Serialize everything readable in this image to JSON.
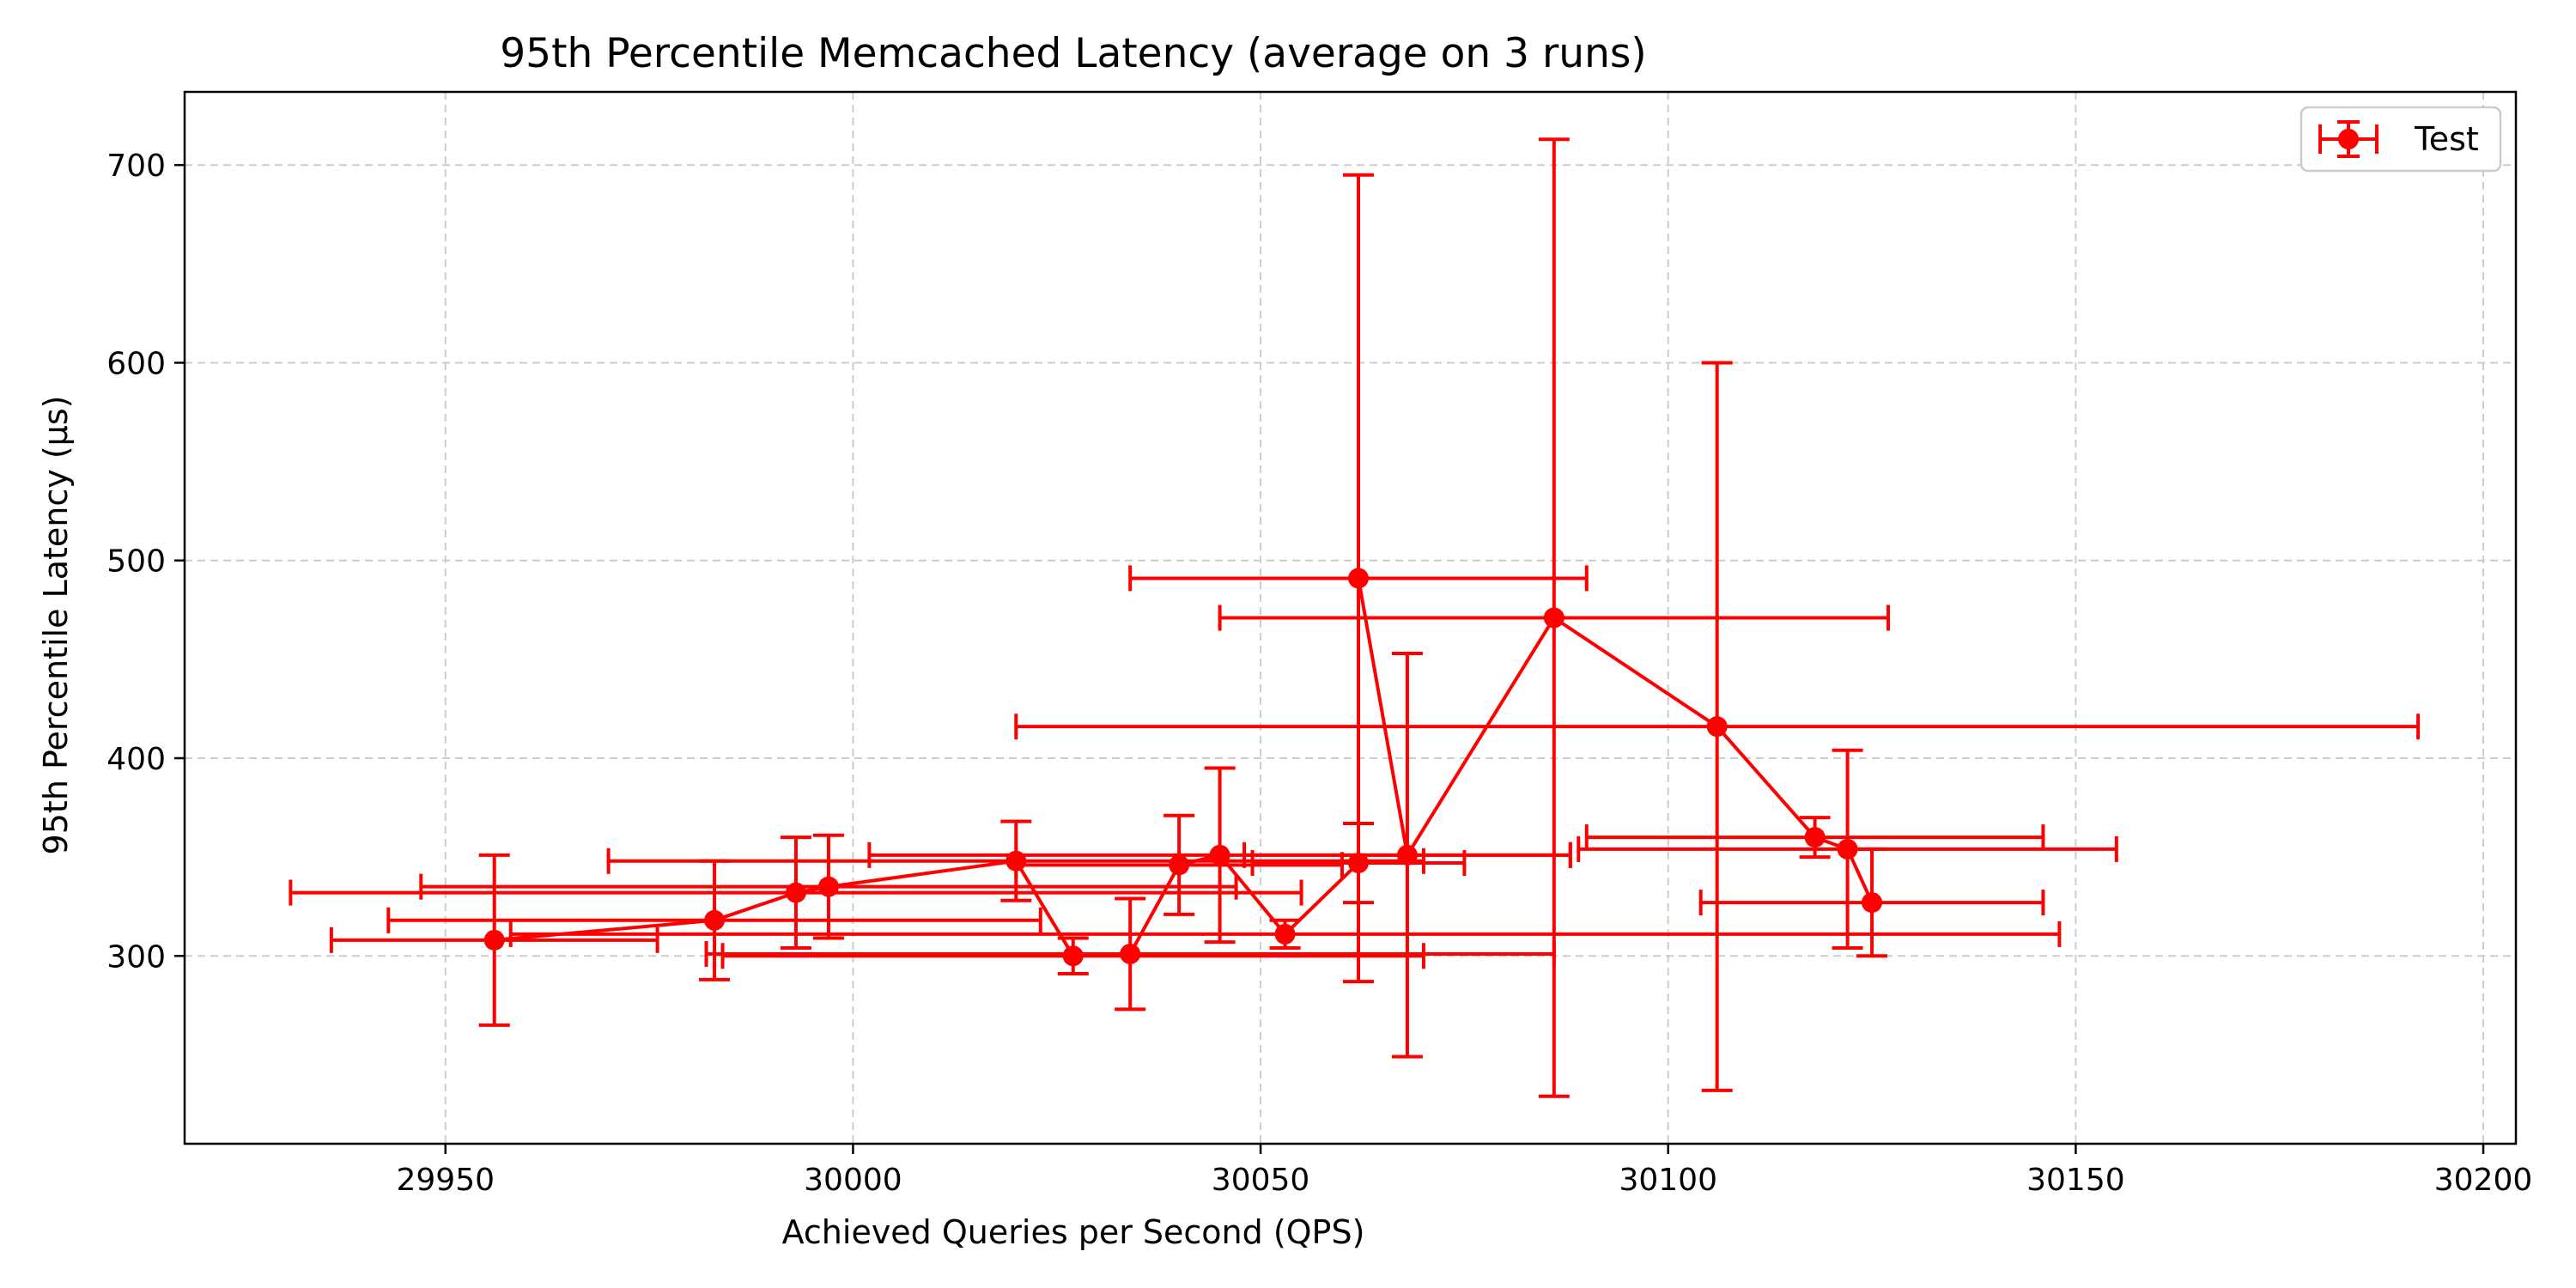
{
  "chart_data": {
    "type": "scatter",
    "title": "95th Percentile Memcached Latency (average on 3 runs)",
    "xlabel": "Achieved Queries per Second (QPS)",
    "ylabel": "95th Percentile Latency (µs)",
    "xlim": [
      29918,
      30204
    ],
    "ylim": [
      205,
      737
    ],
    "xticks": [
      29950,
      30000,
      30050,
      30100,
      30150,
      30200
    ],
    "yticks": [
      300,
      400,
      500,
      600,
      700
    ],
    "grid": true,
    "legend_position": "top-right",
    "colors": {
      "series": "#ff0000",
      "grid": "#cccccc",
      "axis": "#000000"
    },
    "series": [
      {
        "name": "Test",
        "marker": "circle",
        "connected": true,
        "points": [
          {
            "x": 29956,
            "y": 308,
            "xerr": 20,
            "yerr": 43
          },
          {
            "x": 29983,
            "y": 318,
            "xerr": 40,
            "yerr": 30
          },
          {
            "x": 29993,
            "y": 332,
            "xerr": 62,
            "yerr": 28
          },
          {
            "x": 29997,
            "y": 335,
            "xerr": 50,
            "yerr": 26
          },
          {
            "x": 30020,
            "y": 348,
            "xerr": 50,
            "yerr": 20
          },
          {
            "x": 30027,
            "y": 300,
            "xerr": 43,
            "yerr": 9
          },
          {
            "x": 30034,
            "y": 301,
            "xerr": 52,
            "yerr": 28
          },
          {
            "x": 30040,
            "y": 346,
            "xerr": 20,
            "yerr": 25
          },
          {
            "x": 30045,
            "y": 351,
            "xerr": 43,
            "yerr": 44
          },
          {
            "x": 30053,
            "y": 311,
            "xerr": 95,
            "yerr": 7
          },
          {
            "x": 30062,
            "y": 347,
            "xerr": 13,
            "yerr": 20
          },
          {
            "x": 30062,
            "y": 491,
            "xerr": 28,
            "yerr": 204
          },
          {
            "x": 30068,
            "y": 351,
            "xerr": 20,
            "yerr": 102
          },
          {
            "x": 30086,
            "y": 471,
            "xerr": 41,
            "yerr": 242
          },
          {
            "x": 30106,
            "y": 416,
            "xerr": 86,
            "yerr": 184
          },
          {
            "x": 30118,
            "y": 360,
            "xerr": 28,
            "yerr": 10
          },
          {
            "x": 30122,
            "y": 354,
            "xerr": 33,
            "yerr": 50
          },
          {
            "x": 30125,
            "y": 327,
            "xerr": 21,
            "yerr": 27
          }
        ]
      }
    ]
  }
}
